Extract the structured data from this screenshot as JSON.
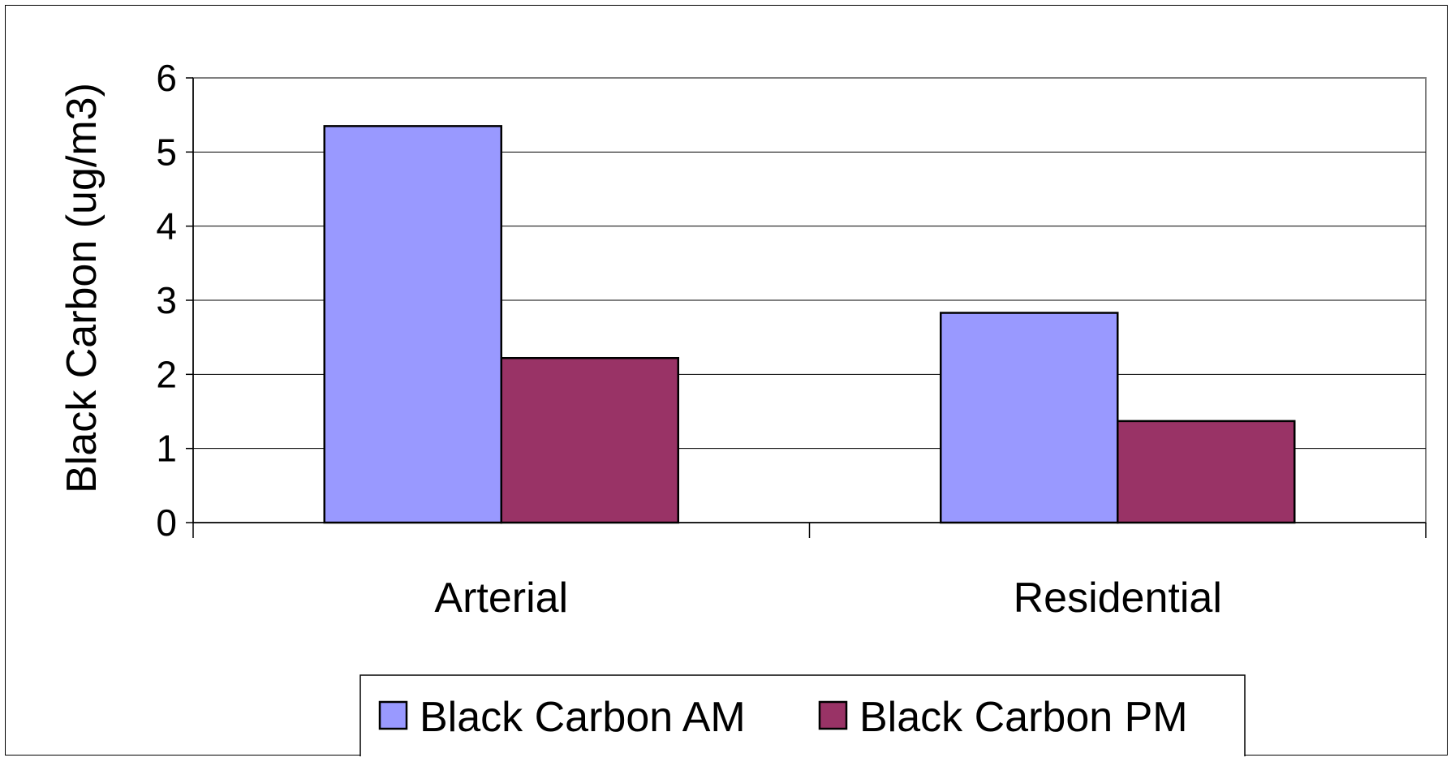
{
  "chart_data": {
    "type": "bar",
    "title": "",
    "xlabel": "",
    "ylabel": "Black Carbon (ug/m3)",
    "categories": [
      "Arterial",
      "Residential"
    ],
    "series": [
      {
        "name": "Black Carbon AM",
        "values": [
          5.35,
          2.83
        ],
        "color": "#9999ff"
      },
      {
        "name": "Black Carbon PM",
        "values": [
          2.22,
          1.37
        ],
        "color": "#993366"
      }
    ],
    "ylim": [
      0,
      6
    ],
    "yticks": [
      "0",
      "1",
      "2",
      "3",
      "4",
      "5",
      "6"
    ],
    "grid": true,
    "legend_position": "bottom"
  }
}
